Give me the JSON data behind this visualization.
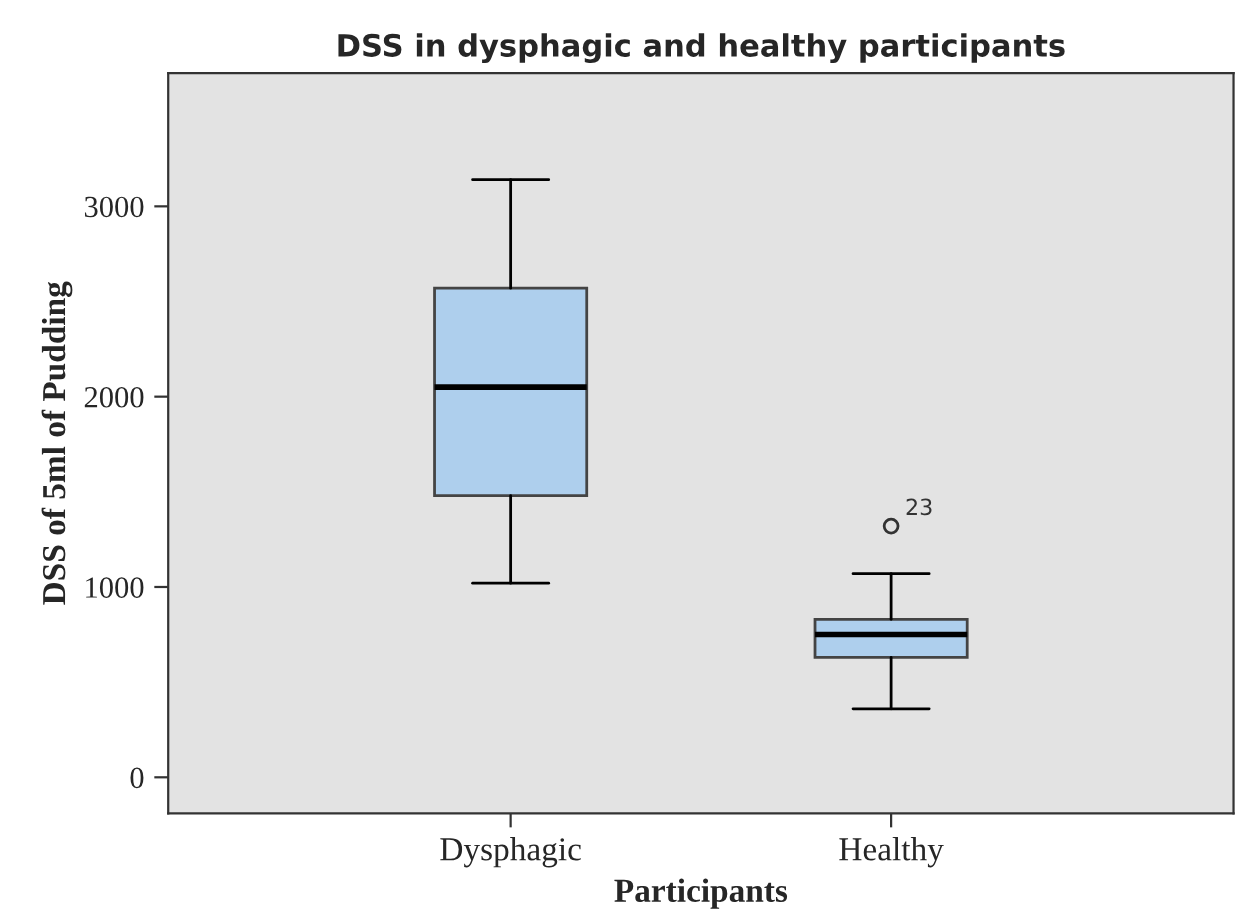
{
  "chart_data": {
    "type": "box",
    "title": "DSS in dysphagic and healthy participants",
    "xlabel": "Participants",
    "ylabel": "DSS of 5ml of Pudding",
    "categories": [
      "Dysphagic",
      "Healthy"
    ],
    "boxes": [
      {
        "low": 1020,
        "q1": 1480,
        "median": 2050,
        "q3": 2570,
        "high": 3140
      },
      {
        "low": 360,
        "q1": 630,
        "median": 750,
        "q3": 830,
        "high": 1070,
        "outliers": [
          1320
        ]
      }
    ],
    "color": "#aecfed",
    "annotations": [
      "23"
    ],
    "ylim": [
      -190,
      3700
    ],
    "yticks": [
      0,
      1000,
      2000,
      3000
    ],
    "grid": false,
    "legend": false
  }
}
